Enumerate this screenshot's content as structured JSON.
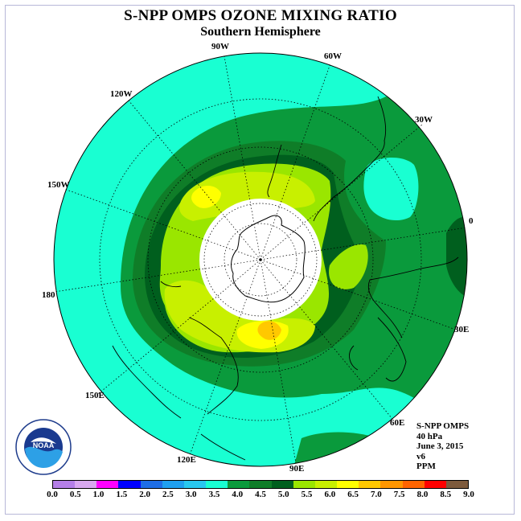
{
  "title": "S-NPP OMPS OZONE MIXING RATIO",
  "subtitle": "Southern Hemisphere",
  "lon_labels": [
    "90W",
    "60W",
    "30W",
    "0",
    "30E",
    "60E",
    "90E",
    "120E",
    "150E",
    "180",
    "150W",
    "120W"
  ],
  "info": {
    "instrument": "S-NPP OMPS",
    "level": "40 hPa",
    "date": "June 3, 2015",
    "version": "v6",
    "units": "PPM"
  },
  "logo_text": "NOAA",
  "colorbar": {
    "ticks": [
      "0.0",
      "0.5",
      "1.0",
      "1.5",
      "2.0",
      "2.5",
      "3.0",
      "3.5",
      "4.0",
      "4.5",
      "5.0",
      "5.5",
      "6.0",
      "6.5",
      "7.0",
      "7.5",
      "8.0",
      "8.5",
      "9.0"
    ],
    "colors": [
      "#b57fe8",
      "#d9a8f0",
      "#ff00ff",
      "#0000ff",
      "#1e6ee6",
      "#1fa0f0",
      "#28c8f0",
      "#19ffd2",
      "#0a9a3c",
      "#0f7d28",
      "#005f1e",
      "#9ae600",
      "#c8f000",
      "#ffff00",
      "#ffc800",
      "#ff9600",
      "#ff6400",
      "#ff0000",
      "#7d5a3c"
    ]
  },
  "legend_levels": {
    "cyan": "#19ffd2",
    "green_light": "#0a9a3c",
    "green_mid": "#0f7d28",
    "green_dark": "#005f1e",
    "yellow_green": "#9ae600",
    "lime": "#c8f000",
    "yellow": "#ffff00",
    "orange": "#ffc800"
  }
}
